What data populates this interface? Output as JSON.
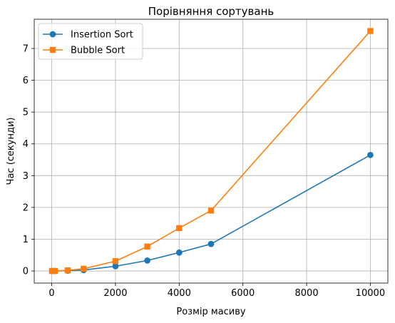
{
  "chart_data": {
    "type": "line",
    "title": "Порівняння сортувань",
    "xlabel": "Розмір масиву",
    "ylabel": "Час (секунди)",
    "xlim": [
      -550,
      10550
    ],
    "ylim": [
      -0.38,
      7.92
    ],
    "xticks": [
      0,
      2000,
      4000,
      6000,
      8000,
      10000
    ],
    "xtick_labels": [
      "0",
      "2000",
      "4000",
      "6000",
      "8000",
      "10000"
    ],
    "yticks": [
      0,
      1,
      2,
      3,
      4,
      5,
      6,
      7
    ],
    "ytick_labels": [
      "0",
      "1",
      "2",
      "3",
      "4",
      "5",
      "6",
      "7"
    ],
    "grid": true,
    "legend_position": "upper-left",
    "x": [
      10,
      100,
      500,
      1000,
      2000,
      3000,
      4000,
      5000,
      10000
    ],
    "series": [
      {
        "name": "Insertion Sort",
        "color": "#1f77b4",
        "marker": "circle",
        "values": [
          0.0,
          0.0,
          0.01,
          0.03,
          0.15,
          0.33,
          0.58,
          0.85,
          3.65
        ]
      },
      {
        "name": "Bubble Sort",
        "color": "#ff7f0e",
        "marker": "square",
        "values": [
          0.0,
          0.0,
          0.02,
          0.07,
          0.31,
          0.77,
          1.35,
          1.9,
          7.55
        ]
      }
    ]
  }
}
